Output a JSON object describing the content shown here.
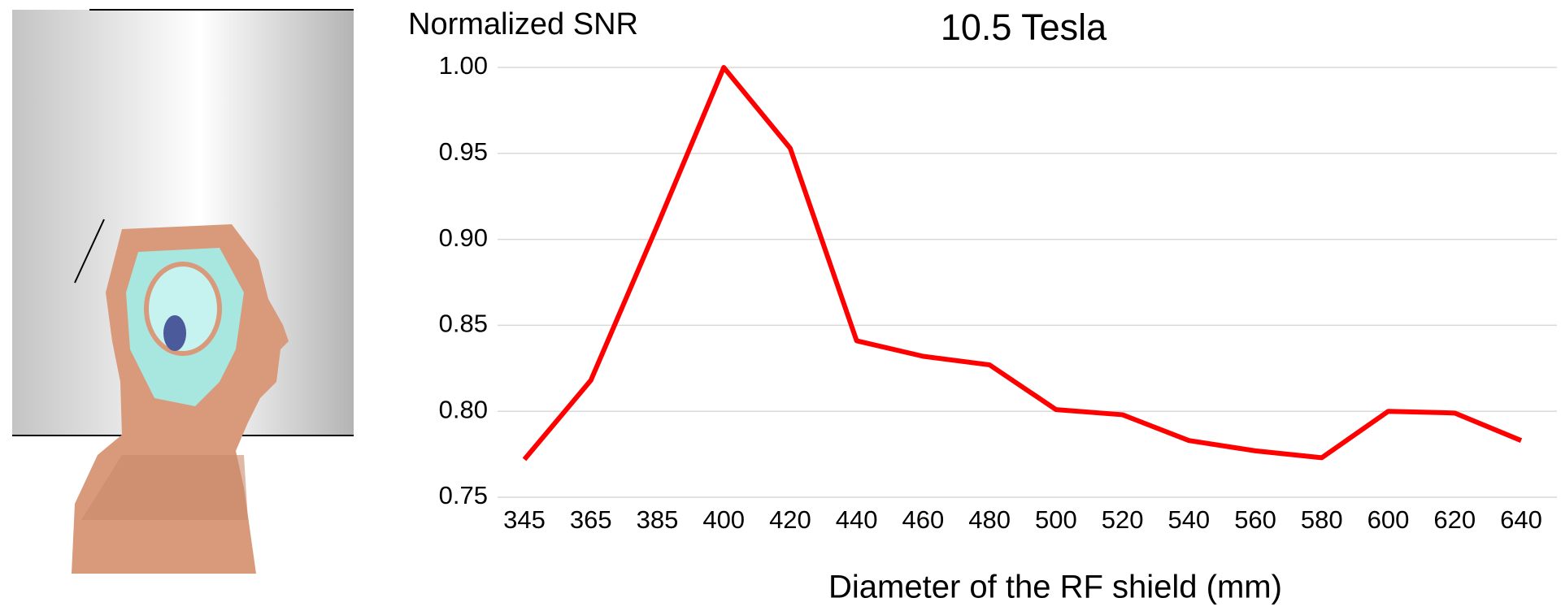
{
  "chart_data": {
    "type": "line",
    "title": "10.5 Tesla",
    "y_label": "Normalized SNR",
    "x_label": "Diameter of the RF shield (mm)",
    "categories": [
      "345",
      "365",
      "385",
      "400",
      "420",
      "440",
      "460",
      "480",
      "500",
      "520",
      "540",
      "560",
      "580",
      "600",
      "620",
      "640"
    ],
    "series": [
      {
        "name": "Normalized SNR",
        "color": "#ff0000",
        "values": [
          0.772,
          0.818,
          0.908,
          1.0,
          0.953,
          0.841,
          0.832,
          0.827,
          0.801,
          0.798,
          0.783,
          0.777,
          0.773,
          0.8,
          0.799,
          0.783
        ]
      }
    ],
    "ylim": [
      0.75,
      1.0
    ],
    "yticks": [
      {
        "value": 1.0,
        "label": "1.00"
      },
      0.95,
      {
        "value": 0.9,
        "label": "0.90"
      },
      0.85,
      {
        "value": 0.8,
        "label": "0.80"
      },
      0.75
    ],
    "grid": true
  }
}
